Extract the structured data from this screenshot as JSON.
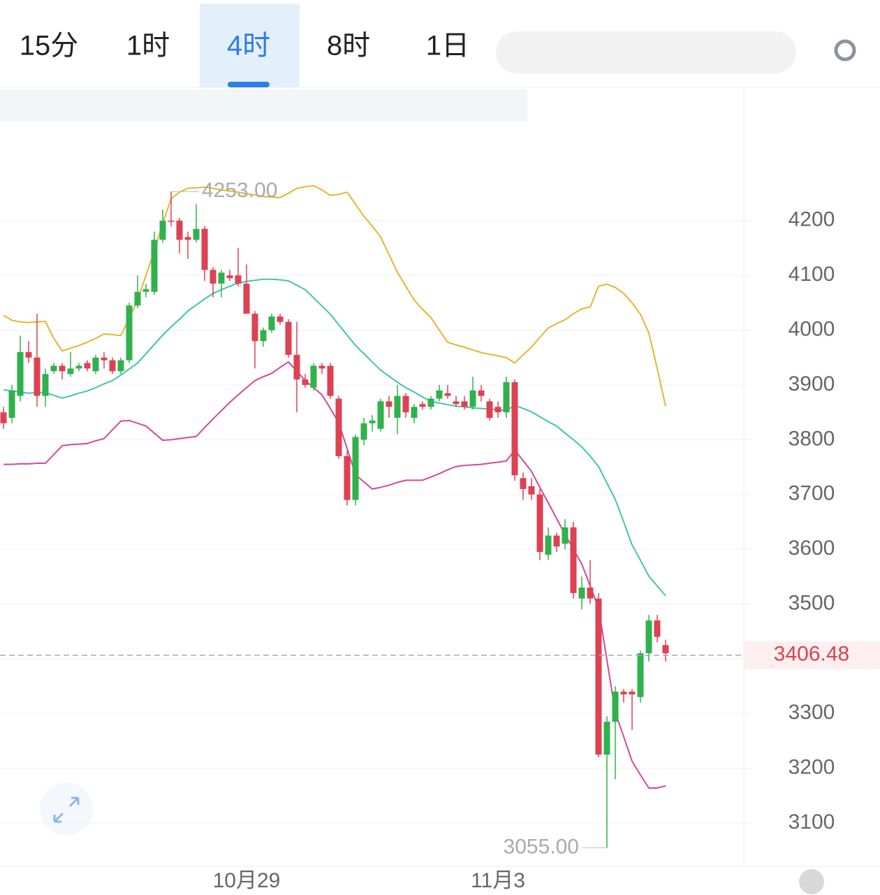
{
  "tabs": [
    "15分",
    "1时",
    "4时",
    "8时",
    "1日"
  ],
  "active_tab": 2,
  "chart_data": {
    "type": "candlestick",
    "categories": [
      null,
      null,
      null,
      null,
      null,
      null,
      null,
      null,
      null,
      null,
      null,
      null,
      null,
      null,
      null,
      null,
      null,
      null,
      null,
      null,
      null,
      null,
      null,
      null,
      null,
      null,
      null,
      null,
      null,
      "10月29",
      null,
      null,
      null,
      null,
      null,
      null,
      null,
      null,
      null,
      null,
      null,
      null,
      null,
      null,
      null,
      null,
      null,
      null,
      null,
      null,
      null,
      null,
      null,
      null,
      null,
      null,
      null,
      null,
      null,
      "11月3",
      null,
      null,
      null,
      null,
      null,
      null,
      null,
      null,
      null,
      null,
      null,
      null,
      null,
      null,
      null,
      null,
      null,
      null,
      null,
      null
    ],
    "open": [
      3850,
      3840,
      3880,
      3960,
      3950,
      3880,
      3925,
      3935,
      3920,
      3930,
      3940,
      3925,
      3950,
      3945,
      3925,
      3945,
      4045,
      4070,
      4070,
      4165,
      4200,
      4200,
      4170,
      4165,
      4185,
      4110,
      4085,
      4100,
      4100,
      4085,
      4030,
      3980,
      4000,
      4025,
      4015,
      3955,
      3910,
      3895,
      3935,
      3935,
      3875,
      3770,
      3690,
      3800,
      3830,
      3820,
      3870,
      3840,
      3880,
      3840,
      3865,
      3860,
      3875,
      3885,
      3870,
      3870,
      3860,
      3890,
      3870,
      3860,
      3850,
      3905,
      3730,
      3715,
      3700,
      3590,
      3625,
      3610,
      3640,
      3510,
      3530,
      3510,
      3225,
      3285,
      3340,
      3340,
      3330,
      3410,
      3470,
      3425
    ],
    "high": [
      3860,
      3900,
      3990,
      3980,
      4030,
      3930,
      3940,
      3940,
      3960,
      3940,
      3945,
      3955,
      3960,
      3950,
      3950,
      4050,
      4100,
      4085,
      4180,
      4220,
      4253,
      4205,
      4180,
      4230,
      4190,
      4115,
      4110,
      4110,
      4150,
      4120,
      4035,
      4005,
      4030,
      4030,
      4020,
      4015,
      3920,
      3940,
      3940,
      3940,
      3880,
      3780,
      3810,
      3840,
      3845,
      3875,
      3880,
      3900,
      3885,
      3865,
      3870,
      3880,
      3900,
      3900,
      3880,
      3880,
      3915,
      3900,
      3875,
      3870,
      3915,
      3910,
      3740,
      3730,
      3710,
      3640,
      3630,
      3655,
      3650,
      3550,
      3580,
      3520,
      3295,
      3350,
      3345,
      3345,
      3415,
      3480,
      3480,
      3435
    ],
    "low": [
      3820,
      3830,
      3870,
      3940,
      3860,
      3860,
      3920,
      3910,
      3915,
      3925,
      3925,
      3920,
      3930,
      3920,
      3920,
      3940,
      4040,
      4060,
      4065,
      4160,
      4190,
      4140,
      4130,
      4160,
      4090,
      4060,
      4060,
      4090,
      4080,
      4030,
      3930,
      3970,
      3995,
      4010,
      3950,
      3850,
      3895,
      3890,
      3920,
      3875,
      3765,
      3680,
      3680,
      3790,
      3815,
      3815,
      3840,
      3810,
      3840,
      3830,
      3855,
      3855,
      3870,
      3875,
      3860,
      3855,
      3855,
      3870,
      3835,
      3840,
      3840,
      3725,
      3690,
      3690,
      3580,
      3580,
      3595,
      3600,
      3510,
      3490,
      3500,
      3220,
      3055,
      3180,
      3320,
      3270,
      3320,
      3395,
      3430,
      3395
    ],
    "close": [
      3830,
      3890,
      3960,
      3950,
      3880,
      3920,
      3935,
      3925,
      3930,
      3935,
      3930,
      3950,
      3945,
      3925,
      3945,
      4045,
      4070,
      4075,
      4165,
      4200,
      4198,
      4165,
      4165,
      4185,
      4110,
      4085,
      4105,
      4095,
      4085,
      4030,
      3980,
      4000,
      4025,
      4015,
      3955,
      3910,
      3900,
      3935,
      3930,
      3880,
      3770,
      3690,
      3805,
      3830,
      3835,
      3870,
      3860,
      3880,
      3850,
      3860,
      3860,
      3875,
      3890,
      3880,
      3865,
      3860,
      3890,
      3880,
      3840,
      3850,
      3905,
      3735,
      3710,
      3700,
      3595,
      3625,
      3605,
      3640,
      3520,
      3530,
      3510,
      3225,
      3285,
      3340,
      3335,
      3335,
      3410,
      3470,
      3440,
      3410
    ],
    "up_color": "#2fb24c",
    "down_color": "#de4152",
    "series": [
      {
        "color": "#e6b52e",
        "values": [
          4027,
          4018,
          4015,
          4014,
          4015,
          4016,
          3985,
          3962,
          3967,
          3972,
          3978,
          3985,
          3993,
          3992,
          3990,
          4022,
          4055,
          4100,
          4145,
          4195,
          4240,
          4252,
          4259,
          4260,
          4261,
          4259,
          4256,
          4254,
          4252,
          4249,
          4247,
          4244,
          4243,
          4242,
          4250,
          4259,
          4262,
          4264,
          4256,
          4246,
          4248,
          4252,
          4230,
          4208,
          4190,
          4170,
          4138,
          4106,
          4080,
          4055,
          4038,
          4023,
          4000,
          3978,
          3973,
          3969,
          3964,
          3959,
          3956,
          3953,
          3950,
          3940,
          3955,
          3969,
          3987,
          4004,
          4012,
          4019,
          4030,
          4039,
          4042,
          4080,
          4084,
          4078,
          4067,
          4050,
          4029,
          3995,
          3930,
          3861
        ]
      },
      {
        "color": "#3ec7a6",
        "values": [
          3891,
          3889,
          3887,
          3885,
          3886,
          3886,
          3881,
          3876,
          3880,
          3885,
          3889,
          3895,
          3902,
          3908,
          3918,
          3929,
          3940,
          3957,
          3974,
          3991,
          4006,
          4020,
          4035,
          4046,
          4057,
          4067,
          4074,
          4080,
          4086,
          4089,
          4091,
          4093,
          4093,
          4092,
          4090,
          4082,
          4074,
          4059,
          4044,
          4029,
          4010,
          3991,
          3972,
          3957,
          3942,
          3927,
          3916,
          3905,
          3895,
          3887,
          3878,
          3870,
          3867,
          3864,
          3861,
          3860,
          3858,
          3857,
          3856,
          3855,
          3853,
          3863,
          3857,
          3851,
          3842,
          3833,
          3825,
          3812,
          3800,
          3787,
          3770,
          3751,
          3721,
          3691,
          3650,
          3608,
          3580,
          3551,
          3533,
          3515
        ]
      },
      {
        "color": "#d4489c",
        "values": [
          3755,
          3755,
          3756,
          3756,
          3757,
          3757,
          3773,
          3789,
          3791,
          3792,
          3793,
          3798,
          3802,
          3818,
          3834,
          3835,
          3830,
          3825,
          3812,
          3799,
          3800,
          3802,
          3804,
          3806,
          3822,
          3838,
          3853,
          3868,
          3882,
          3895,
          3908,
          3915,
          3921,
          3932,
          3942,
          3925,
          3908,
          3895,
          3882,
          3857,
          3831,
          3784,
          3736,
          3723,
          3710,
          3713,
          3717,
          3722,
          3726,
          3726,
          3726,
          3732,
          3738,
          3745,
          3751,
          3753,
          3754,
          3755,
          3757,
          3759,
          3761,
          3781,
          3762,
          3742,
          3713,
          3685,
          3656,
          3627,
          3600,
          3573,
          3533,
          3493,
          3398,
          3302,
          3258,
          3213,
          3188,
          3164,
          3164,
          3168
        ]
      }
    ],
    "ylim": [
      3021,
      4437
    ],
    "yticks": [
      3100,
      3200,
      3300,
      3400,
      3500,
      3600,
      3700,
      3800,
      3900,
      4000,
      4100,
      4200
    ],
    "high_label": {
      "value": 4253,
      "label": "4253.00"
    },
    "low_label": {
      "value": 3055,
      "label": "3055.00"
    },
    "last_price": {
      "value": 3406.48,
      "label": "3406.48"
    },
    "grid": true
  }
}
